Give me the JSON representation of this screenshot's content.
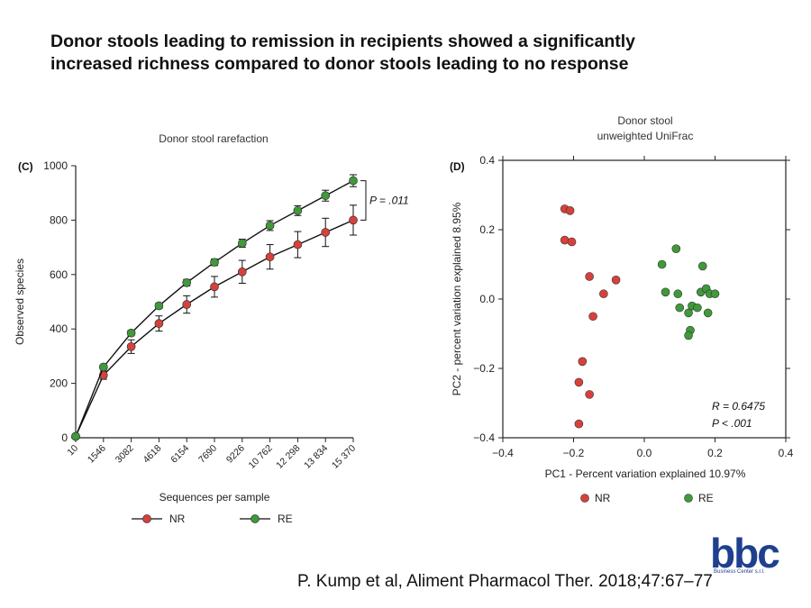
{
  "headline": {
    "line1": "Donor stools leading to remission in recipients showed a significantly",
    "line2": "increased richness compared to donor stools leading to no response"
  },
  "citation": "P. Kump et al, Aliment Pharmacol Ther. 2018;47:67–77",
  "logo": {
    "word": "bbc",
    "sub": "Business Center s.r.l."
  },
  "colors": {
    "NR": "#d8413b",
    "RE": "#3f9a3a",
    "axis": "#222222"
  },
  "chart_data": [
    {
      "type": "line",
      "panel": "(C)",
      "title": "Donor stool rarefaction",
      "xlabel": "Sequences per sample",
      "ylabel": "Observed species",
      "categories": [
        "10",
        "1546",
        "3082",
        "4618",
        "6154",
        "7690",
        "9226",
        "10 762",
        "12 298",
        "13 834",
        "15 370"
      ],
      "ylim": [
        0,
        1000
      ],
      "yticks": [
        "0",
        "200",
        "400",
        "600",
        "800",
        "1000"
      ],
      "series": [
        {
          "name": "NR",
          "values": [
            5,
            230,
            335,
            420,
            490,
            555,
            610,
            665,
            710,
            755,
            800
          ],
          "errors": [
            0,
            15,
            25,
            28,
            32,
            38,
            42,
            45,
            48,
            52,
            55
          ]
        },
        {
          "name": "RE",
          "values": [
            5,
            260,
            385,
            485,
            570,
            645,
            715,
            780,
            835,
            890,
            945
          ],
          "errors": [
            0,
            8,
            10,
            10,
            12,
            12,
            15,
            18,
            18,
            20,
            22
          ]
        }
      ],
      "annotation": "P = .011",
      "legend": "bottom"
    },
    {
      "type": "scatter",
      "panel": "(D)",
      "title_lines": [
        "Donor stool",
        "unweighted UniFrac"
      ],
      "xlabel": "PC1 - Percent variation explained 10.97%",
      "ylabel": "PC2 - percent variation explained 8.95%",
      "xlim": [
        -0.4,
        0.4
      ],
      "ylim": [
        -0.4,
        0.4
      ],
      "xticks": [
        "−0.4",
        "−0.2",
        "0.0",
        "0.2",
        "0.4"
      ],
      "yticks": [
        "0.4",
        "0.2",
        "0.0",
        "−0.2",
        "−0.4"
      ],
      "series": [
        {
          "name": "NR",
          "points": [
            [
              -0.225,
              0.26
            ],
            [
              -0.21,
              0.255
            ],
            [
              -0.225,
              0.17
            ],
            [
              -0.205,
              0.165
            ],
            [
              -0.155,
              0.065
            ],
            [
              -0.08,
              0.055
            ],
            [
              -0.115,
              0.015
            ],
            [
              -0.145,
              -0.05
            ],
            [
              -0.175,
              -0.18
            ],
            [
              -0.185,
              -0.24
            ],
            [
              -0.155,
              -0.275
            ],
            [
              -0.185,
              -0.36
            ]
          ]
        },
        {
          "name": "RE",
          "points": [
            [
              0.05,
              0.1
            ],
            [
              0.09,
              0.145
            ],
            [
              0.165,
              0.095
            ],
            [
              0.06,
              0.02
            ],
            [
              0.095,
              0.015
            ],
            [
              0.1,
              -0.025
            ],
            [
              0.125,
              -0.04
            ],
            [
              0.135,
              -0.02
            ],
            [
              0.15,
              -0.025
            ],
            [
              0.16,
              0.02
            ],
            [
              0.175,
              0.03
            ],
            [
              0.185,
              0.015
            ],
            [
              0.2,
              0.015
            ],
            [
              0.18,
              -0.04
            ],
            [
              0.13,
              -0.09
            ],
            [
              0.125,
              -0.105
            ]
          ]
        }
      ],
      "annotations": [
        "R = 0.6475",
        "P < .001"
      ],
      "legend": "bottom"
    }
  ]
}
